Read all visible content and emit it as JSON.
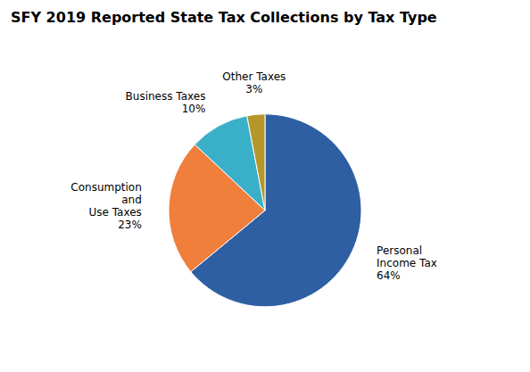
{
  "chart_data": {
    "type": "pie",
    "title": "SFY 2019 Reported State Tax Collections by Tax Type",
    "categories": [
      "Personal\nIncome Tax",
      "Consumption\nand\nUse Taxes",
      "Business Taxes",
      "Other Taxes"
    ],
    "values": [
      64,
      23,
      10,
      3
    ],
    "value_labels": [
      "64%",
      "23%",
      "10%",
      "3%"
    ],
    "colors": [
      "#2e5fa3",
      "#f07f3c",
      "#3ab0c8",
      "#b5962a"
    ]
  }
}
